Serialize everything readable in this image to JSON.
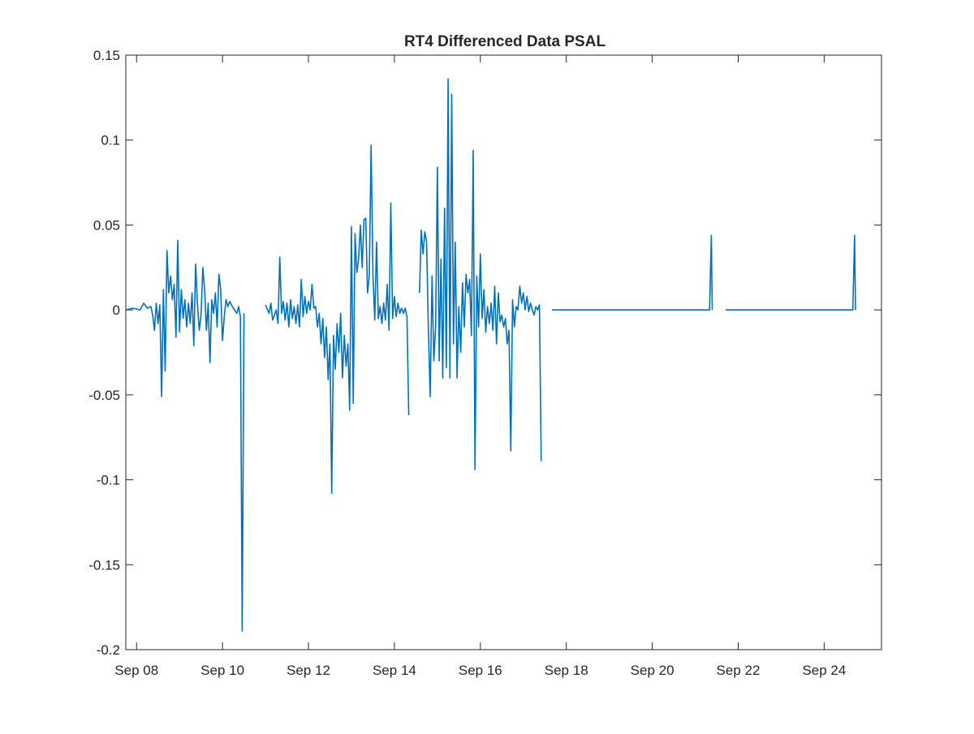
{
  "chart_data": {
    "type": "line",
    "title": "RT4 Differenced Data PSAL",
    "xlabel": "",
    "ylabel": "",
    "ylim": [
      -0.2,
      0.15
    ],
    "xlim": [
      "2020-09-07T18:00",
      "2020-09-25T08:00"
    ],
    "grid": false,
    "x_ticks": [
      {
        "date": "2020-09-08",
        "label": "Sep 08"
      },
      {
        "date": "2020-09-10",
        "label": "Sep 10"
      },
      {
        "date": "2020-09-12",
        "label": "Sep 12"
      },
      {
        "date": "2020-09-14",
        "label": "Sep 14"
      },
      {
        "date": "2020-09-16",
        "label": "Sep 16"
      },
      {
        "date": "2020-09-18",
        "label": "Sep 18"
      },
      {
        "date": "2020-09-20",
        "label": "Sep 20"
      },
      {
        "date": "2020-09-22",
        "label": "Sep 22"
      },
      {
        "date": "2020-09-24",
        "label": "Sep 24"
      }
    ],
    "y_ticks": [
      {
        "value": 0.15,
        "label": "0.15"
      },
      {
        "value": 0.1,
        "label": "0.1"
      },
      {
        "value": 0.05,
        "label": "0.05"
      },
      {
        "value": 0,
        "label": "0"
      },
      {
        "value": -0.05,
        "label": "-0.05"
      },
      {
        "value": -0.1,
        "label": "-0.1"
      },
      {
        "value": -0.15,
        "label": "-0.15"
      },
      {
        "value": -0.2,
        "label": "-0.2"
      }
    ],
    "series": [
      {
        "color": "#0072bd",
        "segments": [
          [
            [
              "2020-09-07T18:00",
              0
            ],
            [
              "2020-09-07T22:00",
              0.001
            ],
            [
              "2020-09-08T02:00",
              0.0
            ],
            [
              "2020-09-08T04:00",
              0.004
            ],
            [
              "2020-09-08T06:00",
              0.001
            ],
            [
              "2020-09-08T08:00",
              0.002
            ],
            [
              "2020-09-08T09:00",
              -0.003
            ],
            [
              "2020-09-08T10:00",
              -0.012
            ],
            [
              "2020-09-08T11:00",
              0.004
            ],
            [
              "2020-09-08T12:00",
              -0.008
            ],
            [
              "2020-09-08T13:00",
              0.003
            ],
            [
              "2020-09-08T14:00",
              -0.051
            ],
            [
              "2020-09-08T15:00",
              0.012
            ],
            [
              "2020-09-08T16:00",
              -0.036
            ],
            [
              "2020-09-08T17:00",
              0.035
            ],
            [
              "2020-09-08T18:00",
              0.01
            ],
            [
              "2020-09-08T19:00",
              0.02
            ],
            [
              "2020-09-08T20:00",
              0.006
            ],
            [
              "2020-09-08T21:00",
              0.015
            ],
            [
              "2020-09-08T22:00",
              -0.016
            ],
            [
              "2020-09-08T23:00",
              0.041
            ],
            [
              "2020-09-09T00:00",
              -0.013
            ],
            [
              "2020-09-09T01:00",
              0.012
            ],
            [
              "2020-09-09T02:00",
              -0.005
            ],
            [
              "2020-09-09T03:00",
              0.006
            ],
            [
              "2020-09-09T04:00",
              -0.01
            ],
            [
              "2020-09-09T05:00",
              0.004
            ],
            [
              "2020-09-09T06:00",
              -0.008
            ],
            [
              "2020-09-09T07:00",
              0.01
            ],
            [
              "2020-09-09T08:00",
              -0.021
            ],
            [
              "2020-09-09T09:00",
              0.027
            ],
            [
              "2020-09-09T10:00",
              0.004
            ],
            [
              "2020-09-09T11:00",
              -0.012
            ],
            [
              "2020-09-09T12:00",
              -0.003
            ],
            [
              "2020-09-09T13:00",
              0.025
            ],
            [
              "2020-09-09T14:00",
              0.012
            ],
            [
              "2020-09-09T15:00",
              -0.012
            ],
            [
              "2020-09-09T16:00",
              0.004
            ],
            [
              "2020-09-09T17:00",
              -0.031
            ],
            [
              "2020-09-09T18:00",
              0.006
            ],
            [
              "2020-09-09T19:00",
              -0.002
            ],
            [
              "2020-09-09T20:00",
              0.01
            ],
            [
              "2020-09-09T21:00",
              -0.01
            ],
            [
              "2020-09-09T22:00",
              0.021
            ],
            [
              "2020-09-09T23:00",
              0.012
            ],
            [
              "2020-09-10T00:00",
              -0.018
            ],
            [
              "2020-09-10T01:00",
              -0.004
            ],
            [
              "2020-09-10T02:00",
              0.006
            ],
            [
              "2020-09-10T03:00",
              0.002
            ],
            [
              "2020-09-10T04:00",
              0.005
            ],
            [
              "2020-09-10T06:00",
              0.001
            ],
            [
              "2020-09-10T08:00",
              -0.002
            ],
            [
              "2020-09-10T09:00",
              0.002
            ],
            [
              "2020-09-10T10:00",
              -0.004
            ],
            [
              "2020-09-10T11:00",
              -0.189
            ],
            [
              "2020-09-10T12:00",
              -0.002
            ]
          ],
          [
            [
              "2020-09-11T00:00",
              0.003
            ],
            [
              "2020-09-11T02:00",
              -0.002
            ],
            [
              "2020-09-11T03:00",
              0.004
            ],
            [
              "2020-09-11T04:00",
              -0.006
            ],
            [
              "2020-09-11T05:00",
              -0.003
            ],
            [
              "2020-09-11T06:00",
              0.0
            ],
            [
              "2020-09-11T07:00",
              -0.008
            ],
            [
              "2020-09-11T08:00",
              0.031
            ],
            [
              "2020-09-11T09:00",
              -0.002
            ],
            [
              "2020-09-11T10:00",
              0.005
            ],
            [
              "2020-09-11T11:00",
              -0.006
            ],
            [
              "2020-09-11T12:00",
              0.004
            ],
            [
              "2020-09-11T13:00",
              -0.01
            ],
            [
              "2020-09-11T14:00",
              0.006
            ],
            [
              "2020-09-11T15:00",
              -0.005
            ],
            [
              "2020-09-11T16:00",
              0.002
            ],
            [
              "2020-09-11T17:00",
              -0.008
            ],
            [
              "2020-09-11T18:00",
              0.003
            ],
            [
              "2020-09-11T19:00",
              -0.01
            ],
            [
              "2020-09-11T20:00",
              0.018
            ],
            [
              "2020-09-11T21:00",
              -0.004
            ],
            [
              "2020-09-11T22:00",
              0.008
            ],
            [
              "2020-09-11T23:00",
              -0.002
            ],
            [
              "2020-09-12T00:00",
              0.005
            ],
            [
              "2020-09-12T01:00",
              0.0
            ],
            [
              "2020-09-12T02:00",
              0.015
            ],
            [
              "2020-09-12T03:00",
              0.001
            ],
            [
              "2020-09-12T04:00",
              0.002
            ],
            [
              "2020-09-12T05:00",
              -0.01
            ],
            [
              "2020-09-12T06:00",
              -0.002
            ],
            [
              "2020-09-12T07:00",
              -0.02
            ],
            [
              "2020-09-12T08:00",
              -0.005
            ],
            [
              "2020-09-12T09:00",
              -0.028
            ],
            [
              "2020-09-12T10:00",
              -0.01
            ],
            [
              "2020-09-12T11:00",
              -0.041
            ],
            [
              "2020-09-12T12:00",
              -0.02
            ],
            [
              "2020-09-12T13:00",
              -0.108
            ],
            [
              "2020-09-12T14:00",
              -0.015
            ],
            [
              "2020-09-12T15:00",
              -0.035
            ],
            [
              "2020-09-12T16:00",
              -0.008
            ],
            [
              "2020-09-12T17:00",
              -0.025
            ],
            [
              "2020-09-12T18:00",
              -0.002
            ],
            [
              "2020-09-12T19:00",
              -0.04
            ],
            [
              "2020-09-12T20:00",
              -0.015
            ],
            [
              "2020-09-12T21:00",
              -0.033
            ],
            [
              "2020-09-12T22:00",
              -0.02
            ],
            [
              "2020-09-12T23:00",
              -0.059
            ],
            [
              "2020-09-13T00:00",
              0.049
            ],
            [
              "2020-09-13T01:00",
              -0.055
            ],
            [
              "2020-09-13T02:00",
              0.045
            ],
            [
              "2020-09-13T03:00",
              0.022
            ],
            [
              "2020-09-13T04:00",
              0.03
            ],
            [
              "2020-09-13T05:00",
              0.05
            ],
            [
              "2020-09-13T06:00",
              0.025
            ],
            [
              "2020-09-13T07:00",
              0.053
            ],
            [
              "2020-09-13T08:00",
              0.054
            ],
            [
              "2020-09-13T09:00",
              0.01
            ],
            [
              "2020-09-13T10:00",
              0.02
            ],
            [
              "2020-09-13T11:00",
              0.097
            ],
            [
              "2020-09-13T12:00",
              0.02
            ],
            [
              "2020-09-13T13:00",
              -0.006
            ],
            [
              "2020-09-13T14:00",
              0.04
            ],
            [
              "2020-09-13T15:00",
              -0.005
            ],
            [
              "2020-09-13T16:00",
              0.002
            ],
            [
              "2020-09-13T17:00",
              -0.008
            ],
            [
              "2020-09-13T18:00",
              0.004
            ],
            [
              "2020-09-13T19:00",
              -0.006
            ],
            [
              "2020-09-13T20:00",
              0.015
            ],
            [
              "2020-09-13T21:00",
              -0.012
            ],
            [
              "2020-09-13T22:00",
              0.063
            ],
            [
              "2020-09-13T23:00",
              -0.005
            ],
            [
              "2020-09-14T00:00",
              0.008
            ],
            [
              "2020-09-14T01:00",
              -0.004
            ],
            [
              "2020-09-14T02:00",
              0.004
            ],
            [
              "2020-09-14T03:00",
              -0.002
            ],
            [
              "2020-09-14T04:00",
              0.001
            ],
            [
              "2020-09-14T05:00",
              -0.002
            ],
            [
              "2020-09-14T06:00",
              0.001
            ],
            [
              "2020-09-14T07:00",
              -0.004
            ],
            [
              "2020-09-14T08:00",
              -0.062
            ]
          ],
          [
            [
              "2020-09-14T14:00",
              0.01
            ],
            [
              "2020-09-14T15:00",
              0.047
            ],
            [
              "2020-09-14T16:00",
              0.033
            ],
            [
              "2020-09-14T17:00",
              0.046
            ],
            [
              "2020-09-14T18:00",
              0.04
            ],
            [
              "2020-09-14T19:00",
              -0.012
            ],
            [
              "2020-09-14T20:00",
              -0.051
            ],
            [
              "2020-09-14T21:00",
              0.02
            ],
            [
              "2020-09-14T22:00",
              -0.03
            ],
            [
              "2020-09-14T23:00",
              -0.01
            ],
            [
              "2020-09-15T00:00",
              0.084
            ],
            [
              "2020-09-15T01:00",
              -0.03
            ],
            [
              "2020-09-15T02:00",
              0.03
            ],
            [
              "2020-09-15T03:00",
              -0.04
            ],
            [
              "2020-09-15T04:00",
              0.06
            ],
            [
              "2020-09-15T05:00",
              -0.034
            ],
            [
              "2020-09-15T06:00",
              0.136
            ],
            [
              "2020-09-15T07:00",
              -0.04
            ],
            [
              "2020-09-15T08:00",
              0.127
            ],
            [
              "2020-09-15T09:00",
              -0.02
            ],
            [
              "2020-09-15T10:00",
              0.04
            ],
            [
              "2020-09-15T11:00",
              -0.04
            ],
            [
              "2020-09-15T12:00",
              0.002
            ],
            [
              "2020-09-15T13:00",
              -0.025
            ],
            [
              "2020-09-15T14:00",
              0.016
            ],
            [
              "2020-09-15T15:00",
              -0.01
            ],
            [
              "2020-09-15T16:00",
              0.021
            ],
            [
              "2020-09-15T17:00",
              0.01
            ],
            [
              "2020-09-15T18:00",
              0.018
            ],
            [
              "2020-09-15T19:00",
              -0.015
            ],
            [
              "2020-09-15T20:00",
              0.094
            ],
            [
              "2020-09-15T21:00",
              -0.094
            ],
            [
              "2020-09-15T22:00",
              0.02
            ],
            [
              "2020-09-15T23:00",
              -0.01
            ],
            [
              "2020-09-16T00:00",
              0.033
            ],
            [
              "2020-09-16T01:00",
              -0.005
            ],
            [
              "2020-09-16T02:00",
              0.012
            ],
            [
              "2020-09-16T03:00",
              -0.013
            ],
            [
              "2020-09-16T04:00",
              0.002
            ],
            [
              "2020-09-16T05:00",
              -0.008
            ],
            [
              "2020-09-16T06:00",
              0.004
            ],
            [
              "2020-09-16T07:00",
              -0.012
            ],
            [
              "2020-09-16T08:00",
              0.014
            ],
            [
              "2020-09-16T09:00",
              -0.02
            ],
            [
              "2020-09-16T10:00",
              0.01
            ],
            [
              "2020-09-16T11:00",
              -0.007
            ],
            [
              "2020-09-16T12:00",
              -0.003
            ],
            [
              "2020-09-16T13:00",
              -0.01
            ],
            [
              "2020-09-16T14:00",
              -0.005
            ],
            [
              "2020-09-16T15:00",
              -0.02
            ],
            [
              "2020-09-16T16:00",
              -0.012
            ],
            [
              "2020-09-16T17:00",
              -0.083
            ],
            [
              "2020-09-16T18:00",
              0.006
            ],
            [
              "2020-09-16T19:00",
              -0.01
            ],
            [
              "2020-09-16T20:00",
              0.002
            ],
            [
              "2020-09-16T21:00",
              0.0
            ],
            [
              "2020-09-16T22:00",
              0.014
            ],
            [
              "2020-09-16T23:00",
              0.004
            ],
            [
              "2020-09-17T00:00",
              0.01
            ],
            [
              "2020-09-17T01:00",
              0.0
            ],
            [
              "2020-09-17T02:00",
              0.008
            ],
            [
              "2020-09-17T03:00",
              -0.001
            ],
            [
              "2020-09-17T04:00",
              0.004
            ],
            [
              "2020-09-17T05:00",
              0.0
            ],
            [
              "2020-09-17T06:00",
              -0.003
            ],
            [
              "2020-09-17T07:00",
              0.002
            ],
            [
              "2020-09-17T08:00",
              0.0
            ],
            [
              "2020-09-17T09:00",
              0.003
            ],
            [
              "2020-09-17T10:00",
              -0.089
            ]
          ],
          [
            [
              "2020-09-17T16:00",
              0
            ],
            [
              "2020-09-21T08:00",
              0
            ],
            [
              "2020-09-21T09:00",
              0.044
            ],
            [
              "2020-09-21T09:30",
              0
            ]
          ],
          [
            [
              "2020-09-21T17:00",
              0
            ],
            [
              "2020-09-24T16:00",
              0
            ],
            [
              "2020-09-24T17:00",
              0.044
            ],
            [
              "2020-09-24T17:30",
              0
            ]
          ]
        ]
      }
    ]
  }
}
